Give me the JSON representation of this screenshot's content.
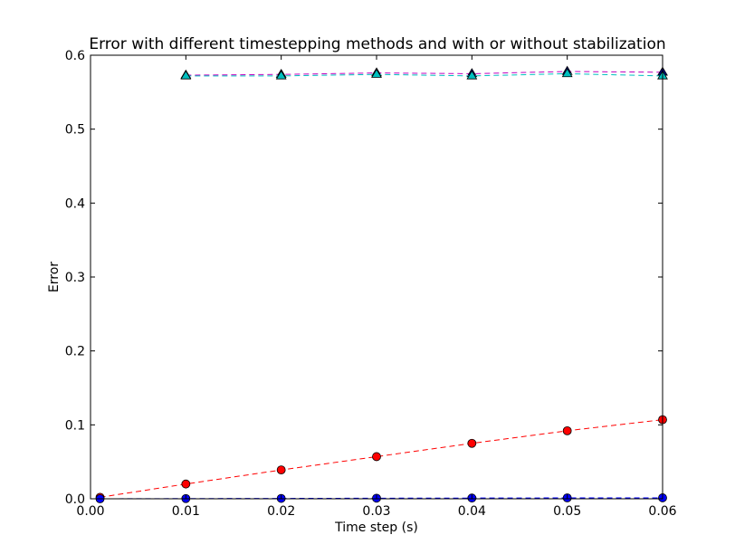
{
  "chart_data": {
    "type": "line",
    "title": "Error with different timestepping methods and with or without stabilization",
    "xlabel": "Time step (s)",
    "ylabel": "Error",
    "xlim": [
      0.0,
      0.06
    ],
    "ylim": [
      0.0,
      0.6
    ],
    "xticks": [
      "0.00",
      "0.01",
      "0.02",
      "0.03",
      "0.04",
      "0.05",
      "0.06"
    ],
    "yticks": [
      "0.0",
      "0.1",
      "0.2",
      "0.3",
      "0.4",
      "0.5",
      "0.6"
    ],
    "grid": false,
    "legend": "none",
    "series": [
      {
        "color": "#ff0000",
        "marker": "circle",
        "marker_fill": "#ff0000",
        "line_style": "dashed",
        "x": [
          0.001,
          0.01,
          0.02,
          0.03,
          0.04,
          0.05,
          0.06
        ],
        "y": [
          0.002,
          0.02,
          0.039,
          0.057,
          0.075,
          0.092,
          0.107
        ]
      },
      {
        "color": "#0000ff",
        "marker": "circle",
        "marker_fill": "#0000ff",
        "line_style": "dashed",
        "x": [
          0.001,
          0.01,
          0.02,
          0.03,
          0.04,
          0.05,
          0.06
        ],
        "y": [
          0.0,
          0.0003,
          0.0005,
          0.0008,
          0.001,
          0.0012,
          0.0013
        ]
      },
      {
        "color": "#bf00bf",
        "marker": "triangle",
        "marker_fill": "#000080",
        "line_style": "dashed",
        "x": [
          0.01,
          0.02,
          0.03,
          0.04,
          0.05,
          0.06
        ],
        "y": [
          0.573,
          0.574,
          0.576,
          0.575,
          0.578,
          0.577
        ]
      },
      {
        "color": "#00bfbf",
        "marker": "triangle",
        "marker_fill": "#00bfbf",
        "line_style": "dashed",
        "x": [
          0.01,
          0.02,
          0.03,
          0.04,
          0.05,
          0.06
        ],
        "y": [
          0.572,
          0.572,
          0.574,
          0.572,
          0.575,
          0.572
        ]
      }
    ]
  }
}
